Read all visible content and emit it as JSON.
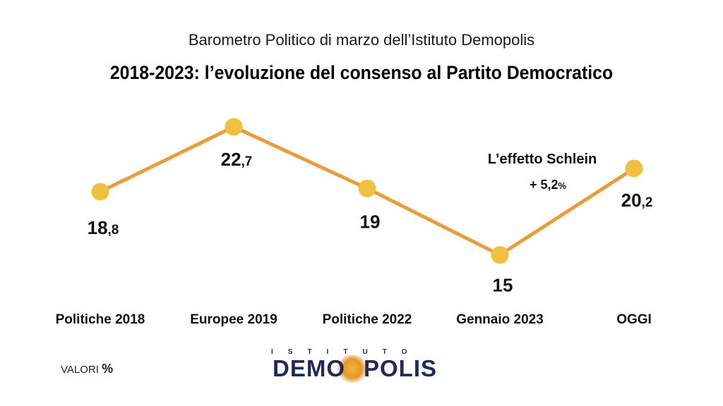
{
  "header": {
    "subtitle": "Barometro Politico di marzo dell’Istituto Demopolis",
    "title": "2018-2023: l’evoluzione del consenso al Partito Democratico"
  },
  "chart_data": {
    "type": "line",
    "categories": [
      "Politiche 2018",
      "Europee 2019",
      "Politiche 2022",
      "Gennaio 2023",
      "OGGI"
    ],
    "values": [
      18.8,
      22.7,
      19,
      15,
      20.2
    ],
    "value_labels": [
      [
        "18",
        ",8"
      ],
      [
        "22",
        ",7"
      ],
      [
        "19",
        ""
      ],
      [
        "15",
        ""
      ],
      [
        "20",
        ",2"
      ]
    ],
    "annotation": {
      "title": "L’effetto Schlein",
      "delta": "+ 5,2",
      "delta_unit": "%"
    },
    "line_color": "#ec9b3b",
    "marker_color": "#f2c040",
    "grid": false
  },
  "footer": {
    "unit_label": "VALORI",
    "unit_symbol": "%",
    "logo_top": "ISTITUTO",
    "logo_main_left": "DEMO",
    "logo_main_right": "POLIS"
  }
}
